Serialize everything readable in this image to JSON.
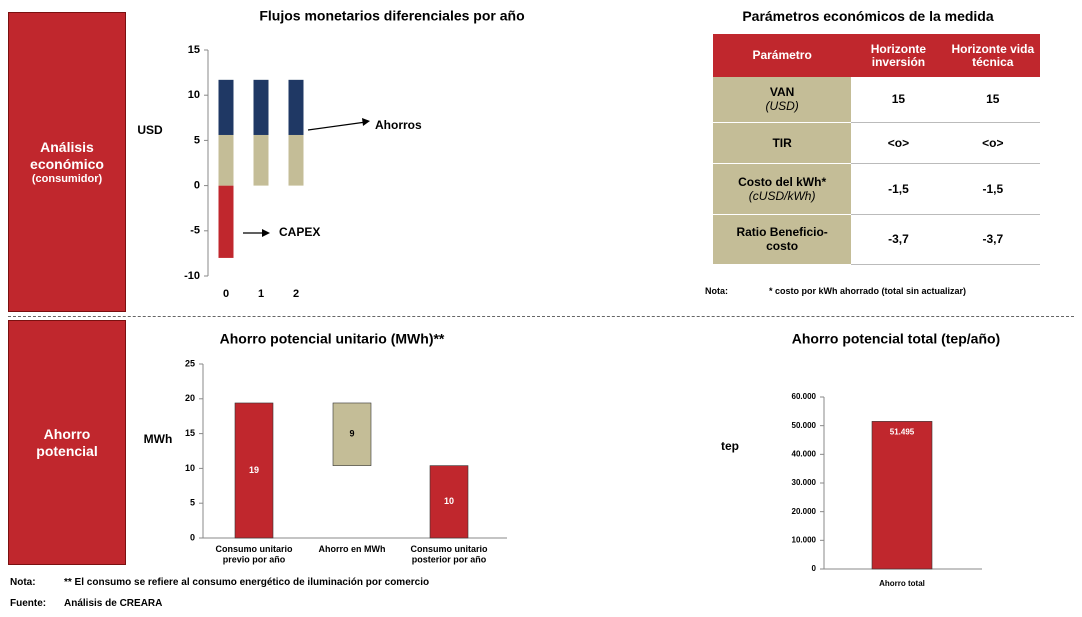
{
  "sections": [
    {
      "title": "Análisis económico",
      "subtitle": "(consumidor)"
    },
    {
      "title": "Ahorro potencial"
    }
  ],
  "chart_data": [
    {
      "type": "stacked_bar",
      "title": "Flujos monetarios diferenciales por año",
      "y_label": "USD",
      "categories": [
        "0",
        "1",
        "2"
      ],
      "series": [
        {
          "color": "#c0272d",
          "values": [
            -8,
            null,
            null
          ]
        },
        {
          "color": "#c4bd97",
          "values": [
            5.6,
            5.6,
            5.6
          ]
        },
        {
          "color": "#1f3864",
          "values": [
            6.1,
            6.1,
            6.1
          ]
        }
      ],
      "annotations": [
        "Ahorros",
        "CAPEX"
      ],
      "ylim": [
        -10,
        15
      ],
      "yticks": [
        -10,
        -5,
        0,
        5,
        10,
        15
      ]
    },
    {
      "type": "waterfall",
      "title": "Ahorro potencial unitario (MWh)**",
      "y_label": "MWh",
      "categories": [
        "Consumo unitario previo por año",
        "Ahorro en MWh",
        "Consumo unitario posterior por año"
      ],
      "values": [
        19.4,
        9,
        10.4
      ],
      "value_labels": [
        "19",
        "9",
        "10"
      ],
      "colors": [
        "#c0272d",
        "#c4bd97",
        "#c0272d"
      ],
      "ylim": [
        0,
        25
      ],
      "yticks": [
        0,
        5,
        10,
        15,
        20,
        25
      ]
    },
    {
      "type": "bar",
      "title": "Ahorro potencial total (tep/año)",
      "y_label": "tep",
      "categories": [
        "Ahorro total"
      ],
      "values": [
        51495
      ],
      "value_labels": [
        "51.495"
      ],
      "colors": [
        "#c0272d"
      ],
      "ylim": [
        0,
        60000
      ],
      "yticks": [
        0,
        {
          "value": 10000,
          "label": "10.000"
        },
        {
          "value": 20000,
          "label": "20.000"
        },
        {
          "value": 30000,
          "label": "30.000"
        },
        {
          "value": 40000,
          "label": "40.000"
        },
        {
          "value": 50000,
          "label": "50.000"
        },
        {
          "value": 60000,
          "label": "60.000"
        }
      ]
    }
  ],
  "table": {
    "title": "Parámetros económicos de la medida",
    "headers": [
      "Parámetro",
      "Horizonte inversión",
      "Horizonte vida técnica"
    ],
    "rows": [
      {
        "label": "VAN",
        "unit": "(USD)",
        "values": [
          "15",
          "15"
        ]
      },
      {
        "label": "TIR",
        "values": [
          "<o>",
          "<o>"
        ]
      },
      {
        "label": "Costo del kWh*",
        "unit": "(cUSD/kWh)",
        "values": [
          "-1,5",
          "-1,5"
        ]
      },
      {
        "label": "Ratio Beneficio-costo",
        "values": [
          "-3,7",
          "-3,7"
        ]
      }
    ],
    "note_label": "Nota:",
    "note": "* costo por kWh ahorrado (total sin actualizar)"
  },
  "notes": {
    "note_label": "Nota:",
    "note": "** El consumo se refiere al consumo energético de iluminación por comercio",
    "source_label": "Fuente:",
    "source": "Análisis de CREARA"
  }
}
